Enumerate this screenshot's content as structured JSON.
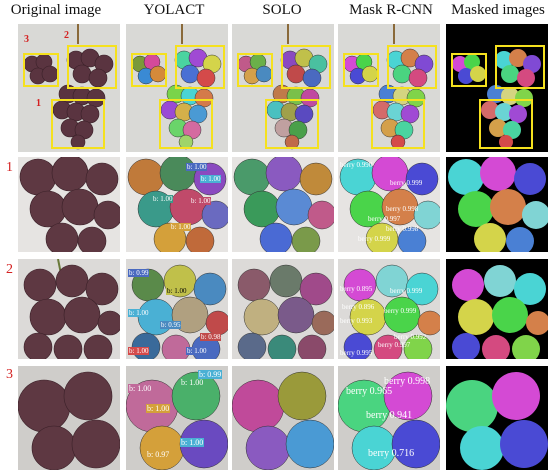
{
  "columns": [
    "Original image",
    "YOLACT",
    "SOLO",
    "Mask R-CNN",
    "Masked images"
  ],
  "rows": [
    "1",
    "2",
    "3"
  ],
  "top_annotations": [
    "3",
    "2",
    "1"
  ],
  "yolact_labels": {
    "row1": [
      "b: 1.00",
      "b: 1.00",
      "b: 1.00",
      "b: 1.00",
      "b: 1.00"
    ],
    "row2": [
      "b: 0.99",
      "b: 1.00",
      "b: 1.00",
      "b: 0.95",
      "b: 0.98",
      "b: 1.00",
      "b: 1.00"
    ],
    "row3": [
      "b: 1.00",
      "b: 1.00",
      "b: 0.99",
      "b: 1.00",
      "b: 1.00",
      "b: 0.97"
    ]
  },
  "maskrcnn_labels": {
    "row1": [
      "berry 0.990",
      "berry 0.999",
      "berry 0.998",
      "berry 0.997",
      "berry 0.998",
      "berry 0.999"
    ],
    "row2": [
      "berry 0.895",
      "berry 0.999",
      "berry 0.896",
      "berry 0.999",
      "berry 0.993",
      "berry 0.992",
      "berry 0.997",
      "berry 0.995"
    ],
    "row3": [
      "berry 0.965",
      "berry 0.998",
      "berry 0.941",
      "berry 0.716"
    ]
  },
  "colors": {
    "box_yellow": "#f5e11e",
    "label_red": "#d42020",
    "grape_dark": "#5a3440",
    "background_gray": "#d9d9d6"
  }
}
